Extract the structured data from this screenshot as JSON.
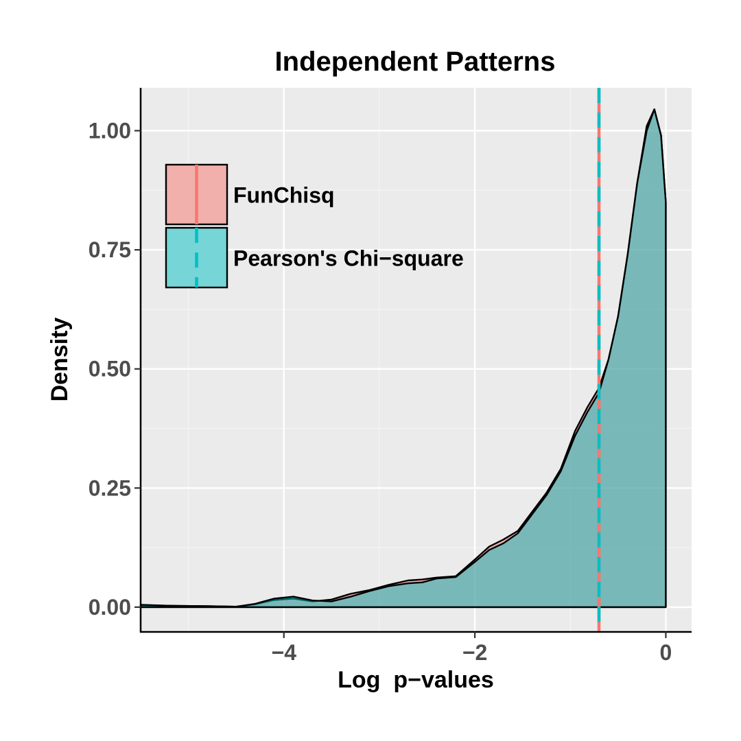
{
  "chart_data": {
    "type": "area",
    "title": "Independent Patterns",
    "xlabel": "Log  p−values",
    "ylabel": "Density",
    "xlim": [
      -5.5,
      0.27
    ],
    "ylim": [
      -0.052,
      1.09
    ],
    "x_ticks": [
      -4,
      -2,
      0
    ],
    "x_tick_labels": [
      "−4",
      "−2",
      "0"
    ],
    "y_ticks": [
      0,
      0.25,
      0.5,
      0.75,
      1.0
    ],
    "y_tick_labels": [
      "0.00",
      "0.25",
      "0.50",
      "0.75",
      "1.00"
    ],
    "x_minor_ticks": [
      -5,
      -3,
      -1
    ],
    "y_minor_ticks": [
      0.125,
      0.375,
      0.625,
      0.875
    ],
    "grid": true,
    "legend_position": "top-left",
    "series": [
      {
        "name": "FunChisq",
        "fill_color": "#F8766D",
        "line_color": "#000000",
        "reference_line_x": -0.7,
        "x": [
          -5.5,
          -5.2,
          -4.8,
          -4.5,
          -4.3,
          -4.1,
          -3.9,
          -3.7,
          -3.5,
          -3.3,
          -3.1,
          -2.9,
          -2.7,
          -2.55,
          -2.4,
          -2.2,
          -2.0,
          -1.85,
          -1.7,
          -1.55,
          -1.4,
          -1.25,
          -1.1,
          -0.95,
          -0.82,
          -0.7,
          -0.6,
          -0.5,
          -0.4,
          -0.3,
          -0.2,
          -0.12,
          -0.05,
          0.0
        ],
        "values": [
          0.004,
          0.003,
          0.002,
          0.001,
          0.006,
          0.015,
          0.018,
          0.012,
          0.016,
          0.028,
          0.036,
          0.047,
          0.056,
          0.058,
          0.062,
          0.065,
          0.1,
          0.127,
          0.142,
          0.16,
          0.2,
          0.24,
          0.29,
          0.37,
          0.42,
          0.46,
          0.52,
          0.61,
          0.74,
          0.89,
          1.01,
          1.045,
          0.99,
          0.85
        ]
      },
      {
        "name": "Pearson's Chi−square",
        "fill_color": "#00BFC4",
        "line_color": "#000000",
        "reference_line_x": -0.7,
        "x": [
          -5.5,
          -5.2,
          -4.8,
          -4.5,
          -4.3,
          -4.1,
          -3.9,
          -3.7,
          -3.5,
          -3.3,
          -3.1,
          -2.9,
          -2.7,
          -2.55,
          -2.4,
          -2.2,
          -2.0,
          -1.85,
          -1.7,
          -1.55,
          -1.4,
          -1.25,
          -1.1,
          -0.95,
          -0.82,
          -0.7,
          -0.6,
          -0.5,
          -0.4,
          -0.3,
          -0.2,
          -0.12,
          -0.05,
          0.0
        ],
        "values": [
          0.005,
          0.003,
          0.002,
          0.001,
          0.007,
          0.018,
          0.022,
          0.014,
          0.012,
          0.022,
          0.034,
          0.044,
          0.05,
          0.052,
          0.06,
          0.063,
          0.095,
          0.12,
          0.134,
          0.155,
          0.195,
          0.235,
          0.285,
          0.36,
          0.41,
          0.45,
          0.52,
          0.61,
          0.74,
          0.89,
          1.0,
          1.045,
          0.99,
          0.85
        ]
      }
    ]
  }
}
